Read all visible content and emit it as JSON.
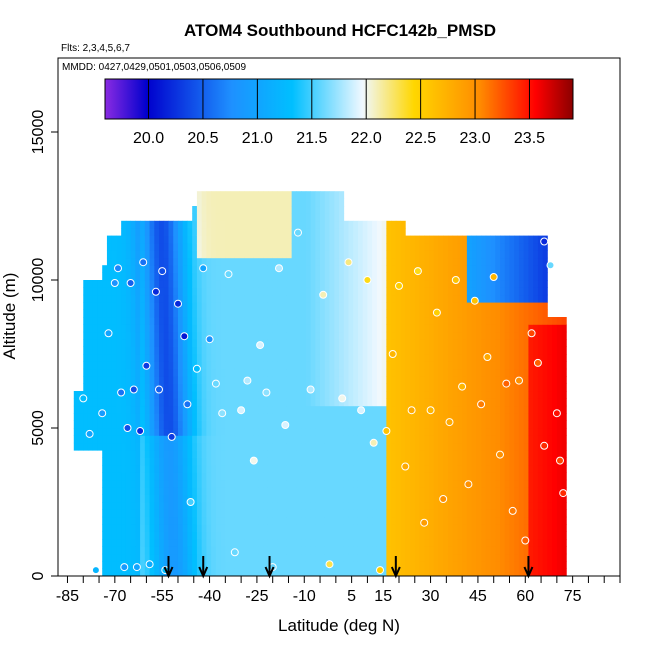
{
  "chart_data": {
    "type": "heatmap",
    "title": "ATOM4 Southbound HCFC142b_PMSD",
    "flights_note": "Flts: 2,3,4,5,6,7",
    "dates_note": "MMDD: 0427,0429,0501,0503,0506,0509",
    "xlabel": "Latitude (deg N)",
    "ylabel": "Altitude (m)",
    "xlim": [
      -88,
      90
    ],
    "ylim": [
      0,
      17500
    ],
    "x_ticks": [
      -85,
      -70,
      -55,
      -40,
      -25,
      -10,
      5,
      15,
      30,
      45,
      60,
      75
    ],
    "y_ticks": [
      0,
      5000,
      10000,
      15000
    ],
    "colorbar": {
      "min": 19.6,
      "max": 23.9,
      "ticks": [
        20.0,
        20.5,
        21.0,
        21.5,
        22.0,
        22.5,
        23.0,
        23.5
      ],
      "colors": [
        "#8a2be2",
        "#0000cd",
        "#1e90ff",
        "#00bfff",
        "#f0f8ff",
        "#ffd700",
        "#ff8c00",
        "#ff0000",
        "#8b0000"
      ]
    },
    "arrow_latitudes": [
      -53,
      -42,
      -21,
      19,
      61
    ],
    "field_description_values": {
      "southern_blue_band_lat": [
        -60,
        -40
      ],
      "southern_blue_band_value": 20.3,
      "tropics_value": 21.6,
      "northern_value": 22.8,
      "arctic_value": 23.4
    },
    "obs_points": [
      [
        -80,
        6000,
        21.3
      ],
      [
        -78,
        4800,
        21.0
      ],
      [
        -76,
        200,
        21.2
      ],
      [
        -74,
        5500,
        20.9
      ],
      [
        -72,
        8200,
        21.0
      ],
      [
        -70,
        9900,
        20.8
      ],
      [
        -69,
        10400,
        20.7
      ],
      [
        -68,
        6200,
        20.6
      ],
      [
        -67,
        300,
        20.9
      ],
      [
        -66,
        5000,
        20.4
      ],
      [
        -65,
        9900,
        20.5
      ],
      [
        -64,
        6300,
        20.4
      ],
      [
        -63,
        300,
        21.0
      ],
      [
        -62,
        4900,
        20.2
      ],
      [
        -61,
        10600,
        20.6
      ],
      [
        -60,
        7100,
        20.3
      ],
      [
        -59,
        400,
        21.1
      ],
      [
        -57,
        9600,
        20.2
      ],
      [
        -56,
        6300,
        20.5
      ],
      [
        -55,
        10300,
        20.4
      ],
      [
        -54,
        200,
        21.3
      ],
      [
        -52,
        4700,
        20.3
      ],
      [
        -50,
        9200,
        20.2
      ],
      [
        -48,
        8100,
        20.1
      ],
      [
        -47,
        5800,
        20.6
      ],
      [
        -46,
        2500,
        21.5
      ],
      [
        -44,
        7000,
        21.3
      ],
      [
        -42,
        10400,
        21.0
      ],
      [
        -40,
        8000,
        20.8
      ],
      [
        -38,
        6500,
        21.6
      ],
      [
        -36,
        5500,
        21.7
      ],
      [
        -34,
        10200,
        21.6
      ],
      [
        -32,
        800,
        21.6
      ],
      [
        -30,
        5600,
        21.9
      ],
      [
        -28,
        6600,
        21.8
      ],
      [
        -26,
        3900,
        22.0
      ],
      [
        -24,
        7800,
        21.9
      ],
      [
        -22,
        6200,
        21.7
      ],
      [
        -20,
        300,
        21.6
      ],
      [
        -18,
        10400,
        21.8
      ],
      [
        -16,
        5100,
        21.9
      ],
      [
        -12,
        11600,
        21.6
      ],
      [
        -8,
        6300,
        21.8
      ],
      [
        -4,
        9500,
        22.1
      ],
      [
        -2,
        400,
        22.3
      ],
      [
        2,
        6000,
        22.0
      ],
      [
        4,
        10600,
        22.2
      ],
      [
        8,
        5600,
        21.9
      ],
      [
        10,
        10000,
        22.4
      ],
      [
        12,
        4500,
        22.1
      ],
      [
        14,
        200,
        22.5
      ],
      [
        16,
        4900,
        22.6
      ],
      [
        18,
        7500,
        22.7
      ],
      [
        20,
        9800,
        22.5
      ],
      [
        22,
        3700,
        22.8
      ],
      [
        24,
        5600,
        22.8
      ],
      [
        26,
        10300,
        22.4
      ],
      [
        28,
        1800,
        22.9
      ],
      [
        30,
        5600,
        22.7
      ],
      [
        32,
        8900,
        22.5
      ],
      [
        34,
        2600,
        23.0
      ],
      [
        36,
        5200,
        22.8
      ],
      [
        38,
        10000,
        22.6
      ],
      [
        40,
        6400,
        22.7
      ],
      [
        42,
        3100,
        23.0
      ],
      [
        44,
        9300,
        22.6
      ],
      [
        46,
        5800,
        23.1
      ],
      [
        48,
        7400,
        22.8
      ],
      [
        50,
        10100,
        22.7
      ],
      [
        52,
        4100,
        23.0
      ],
      [
        54,
        6500,
        23.2
      ],
      [
        56,
        2200,
        23.1
      ],
      [
        58,
        6600,
        23.0
      ],
      [
        60,
        1200,
        23.2
      ],
      [
        62,
        8200,
        23.3
      ],
      [
        64,
        7200,
        23.2
      ],
      [
        66,
        4400,
        23.4
      ],
      [
        68,
        10500,
        21.6
      ],
      [
        70,
        5500,
        23.5
      ],
      [
        71,
        3900,
        23.3
      ],
      [
        72,
        2800,
        23.4
      ],
      [
        66,
        11300,
        20.2
      ]
    ]
  }
}
